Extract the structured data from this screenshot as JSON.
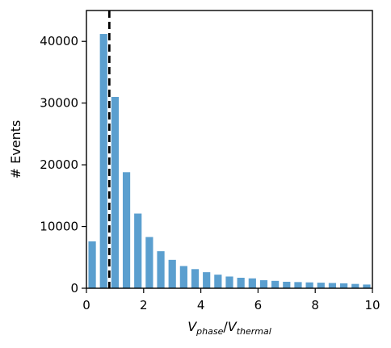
{
  "chart_data": {
    "type": "bar",
    "title": "",
    "xlabel": "V_phase/V_thermal",
    "ylabel": "# Events",
    "xlim": [
      0,
      10
    ],
    "ylim": [
      0,
      45000
    ],
    "x_ticks": [
      0,
      2,
      4,
      6,
      8,
      10
    ],
    "y_ticks": [
      0,
      10000,
      20000,
      30000,
      40000
    ],
    "bin_width": 0.4,
    "x": [
      0.4,
      0.8,
      1.2,
      1.6,
      2.0,
      2.4,
      2.8,
      3.2,
      3.6,
      4.0,
      4.4,
      4.8,
      5.2,
      5.6,
      6.0,
      6.4,
      6.8,
      7.2,
      7.6,
      8.0,
      8.4,
      8.8,
      9.2,
      9.6,
      10.0
    ],
    "values": [
      7600,
      41200,
      31000,
      18800,
      12100,
      8300,
      6000,
      4600,
      3600,
      3100,
      2600,
      2200,
      1900,
      1700,
      1600,
      1300,
      1200,
      1050,
      1000,
      950,
      900,
      850,
      800,
      700,
      600
    ],
    "vline_x": 0.8,
    "vline_style": "dashed",
    "bar_color": "#5b9fcf",
    "grid": false
  }
}
